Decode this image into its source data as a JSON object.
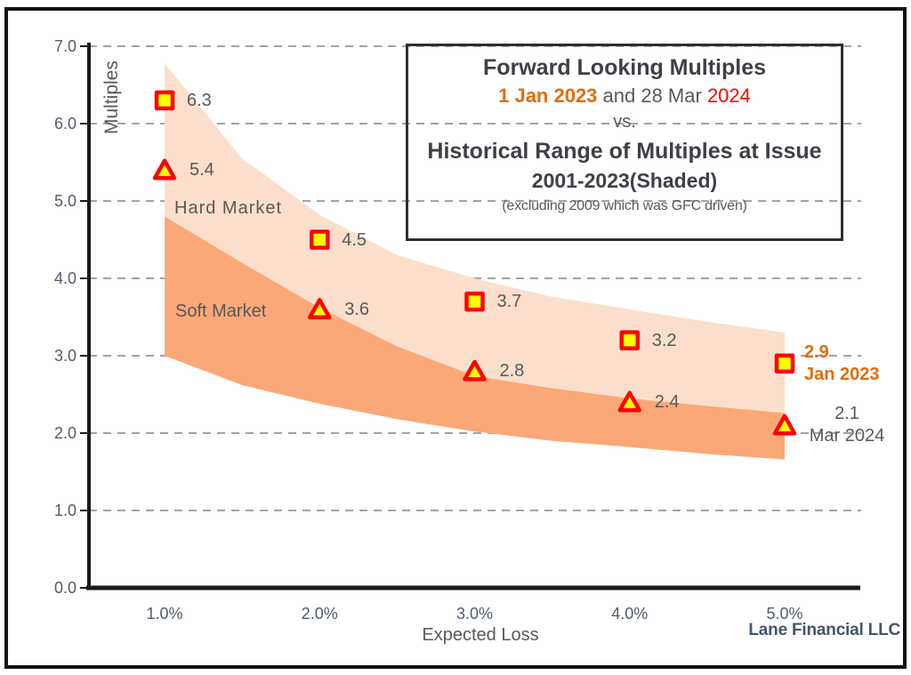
{
  "figure": {
    "footer": "Lane Financial LLC",
    "title_box": {
      "line1": "Forward Looking Multiples",
      "line2_segments": [
        {
          "text": "1 Jan 2023",
          "color": "#e36c0a",
          "bold": true
        },
        {
          "text": " and 28 Mar ",
          "color": "#595959",
          "bold": false
        },
        {
          "text": "2024",
          "color": "#ff0000",
          "bold": false
        }
      ],
      "line3": "vs.",
      "line4": "Historical Range of Multiples at Issue",
      "line5": "2001-2023(Shaded)",
      "line6": "(excluding 2009 which was GFC driven)"
    }
  },
  "chart_data": {
    "type": "scatter",
    "title": "Forward Looking Multiples 1 Jan 2023 and 28 Mar 2024 vs. Historical Range of Multiples at Issue 2001-2023 (Shaded)",
    "xlabel": "Expected Loss",
    "ylabel": "Multiples",
    "xlim": [
      0.5,
      5.5
    ],
    "ylim": [
      0,
      7
    ],
    "grid": {
      "on": true,
      "color": "#a3a3a3",
      "dash": "9 7"
    },
    "x_ticks": [
      {
        "value": 1,
        "label": "1.0%"
      },
      {
        "value": 2,
        "label": "2.0%"
      },
      {
        "value": 3,
        "label": "3.0%"
      },
      {
        "value": 4,
        "label": "4.0%"
      },
      {
        "value": 5,
        "label": "5.0%"
      }
    ],
    "y_ticks": [
      {
        "value": 0,
        "label": "0.0"
      },
      {
        "value": 1,
        "label": "1.0"
      },
      {
        "value": 2,
        "label": "2.0"
      },
      {
        "value": 3,
        "label": "3.0"
      },
      {
        "value": 4,
        "label": "4.0"
      },
      {
        "value": 5,
        "label": "5.0"
      },
      {
        "value": 6,
        "label": "6.0"
      },
      {
        "value": 7,
        "label": "7.0"
      }
    ],
    "series": [
      {
        "name": "1 Jan 2023",
        "marker": "square",
        "marker_fill": "#ffff00",
        "marker_stroke": "#ff0000",
        "points": [
          {
            "x": 1,
            "y": 6.3,
            "label": "6.3"
          },
          {
            "x": 2,
            "y": 4.5,
            "label": "4.5"
          },
          {
            "x": 3,
            "y": 3.7,
            "label": "3.7"
          },
          {
            "x": 4,
            "y": 3.2,
            "label": "3.2"
          },
          {
            "x": 5,
            "y": 2.9,
            "label": "2.9",
            "label2": "Jan 2023",
            "label_color": "#e36c0a",
            "label_bold": true,
            "align": "left"
          }
        ]
      },
      {
        "name": "28 Mar 2024",
        "marker": "triangle",
        "marker_fill": "#ffff00",
        "marker_stroke": "#ff0000",
        "points": [
          {
            "x": 1,
            "y": 5.4,
            "label": "5.4"
          },
          {
            "x": 2,
            "y": 3.6,
            "label": "3.6"
          },
          {
            "x": 3,
            "y": 2.8,
            "label": "2.8"
          },
          {
            "x": 4,
            "y": 2.4,
            "label": "2.4"
          },
          {
            "x": 5,
            "y": 2.1,
            "label": "2.1",
            "label2": "Mar 2024",
            "label_color": "#595959",
            "label_bold": false,
            "align": "center"
          }
        ]
      }
    ],
    "bands": {
      "hard_label": "Hard Market",
      "soft_label": "Soft Market",
      "hard_color": "#fbdfcc",
      "soft_color": "#faa878",
      "x": [
        1.0,
        1.5,
        2.0,
        2.5,
        3.0,
        3.5,
        4.0,
        4.5,
        5.0
      ],
      "hard_market_top": [
        6.78,
        5.55,
        4.82,
        4.3,
        4.0,
        3.76,
        3.6,
        3.44,
        3.3
      ],
      "soft_market_top": [
        4.8,
        4.2,
        3.62,
        3.12,
        2.74,
        2.58,
        2.45,
        2.35,
        2.26
      ],
      "soft_market_bottom": [
        3.0,
        2.62,
        2.38,
        2.18,
        2.02,
        1.9,
        1.82,
        1.73,
        1.66
      ]
    }
  }
}
